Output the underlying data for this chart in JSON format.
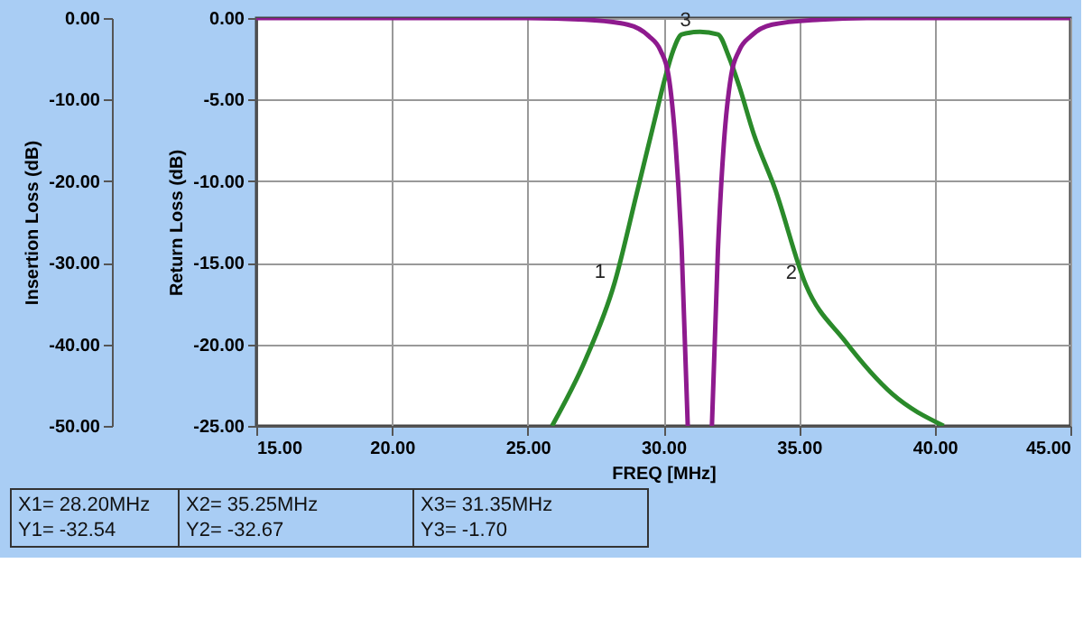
{
  "chart_data": {
    "type": "line",
    "xlabel": "FREQ [MHz]",
    "ylabel": "Insertion Loss (dB)",
    "y2label": "Return Loss (dB)",
    "xlim": [
      15,
      45
    ],
    "xticks": [
      {
        "value": 15,
        "label": "15.00"
      },
      {
        "value": 20,
        "label": "20.00"
      },
      {
        "value": 25,
        "label": "25.00"
      },
      {
        "value": 30,
        "label": "30.00"
      },
      {
        "value": 35,
        "label": "35.00"
      },
      {
        "value": 40,
        "label": "40.00"
      },
      {
        "value": 45,
        "label": "45.00"
      }
    ],
    "ylim": [
      -50,
      0
    ],
    "yticks": [
      {
        "value": -50,
        "label": "-50.00"
      },
      {
        "value": -40,
        "label": "-40.00"
      },
      {
        "value": -30,
        "label": "-30.00"
      },
      {
        "value": -20,
        "label": "-20.00"
      },
      {
        "value": -10,
        "label": "-10.00"
      },
      {
        "value": 0,
        "label": "0.00"
      }
    ],
    "y2lim": [
      -25,
      0
    ],
    "y2ticks": [
      {
        "value": -25,
        "label": "-25.00"
      },
      {
        "value": -20,
        "label": "-20.00"
      },
      {
        "value": -15,
        "label": "-15.00"
      },
      {
        "value": -10,
        "label": "-10.00"
      },
      {
        "value": -5,
        "label": "-5.00"
      },
      {
        "value": 0,
        "label": "0.00"
      }
    ],
    "grid": true,
    "line_style": "solid",
    "marker": "none",
    "series": [
      {
        "color": "#2a8a2a",
        "x": [
          25.9,
          27.13,
          28.2,
          29.02,
          29.68,
          30.06,
          30.35,
          30.68,
          31.35,
          32.01,
          32.41,
          32.79,
          33.34,
          34.11,
          35.25,
          36.67,
          38.44,
          40.33
        ],
        "values": [
          -50,
          -41.9,
          -32.5,
          -21.5,
          -12.5,
          -7.4,
          -4.1,
          -2.0,
          -1.7,
          -2.0,
          -4.7,
          -8.3,
          -14.3,
          -20.9,
          -32.7,
          -39.5,
          -46.1,
          -50
        ]
      },
      {
        "color": "#8e1a8e",
        "axis": "y2",
        "x": [
          15,
          20,
          25,
          27.1,
          28.68,
          29.46,
          29.9,
          30.19,
          30.45,
          30.68,
          30.9,
          31.35,
          31.79,
          32.01,
          32.23,
          32.5,
          32.79,
          33.23,
          34.01,
          35.78,
          37.5,
          45
        ],
        "values": [
          0,
          0,
          0,
          -0.1,
          -0.4,
          -1.1,
          -2.0,
          -3.5,
          -7.7,
          -14.3,
          -25,
          null,
          -25,
          -14.3,
          -7.7,
          -3.5,
          -2.0,
          -1.1,
          -0.4,
          -0.1,
          0,
          0
        ]
      }
    ],
    "annotations": [
      {
        "text": "1",
        "x": 28.2,
        "y": -32.54
      },
      {
        "text": "2",
        "x": 35.25,
        "y": -32.67
      },
      {
        "text": "3",
        "x": 31.35,
        "y": -1.7
      },
      "X1= 28.20MHz",
      "Y1= -32.54",
      "X2= 35.25MHz",
      "Y2= -32.67",
      "X3= 31.35MHz",
      "Y3= -1.70"
    ]
  }
}
